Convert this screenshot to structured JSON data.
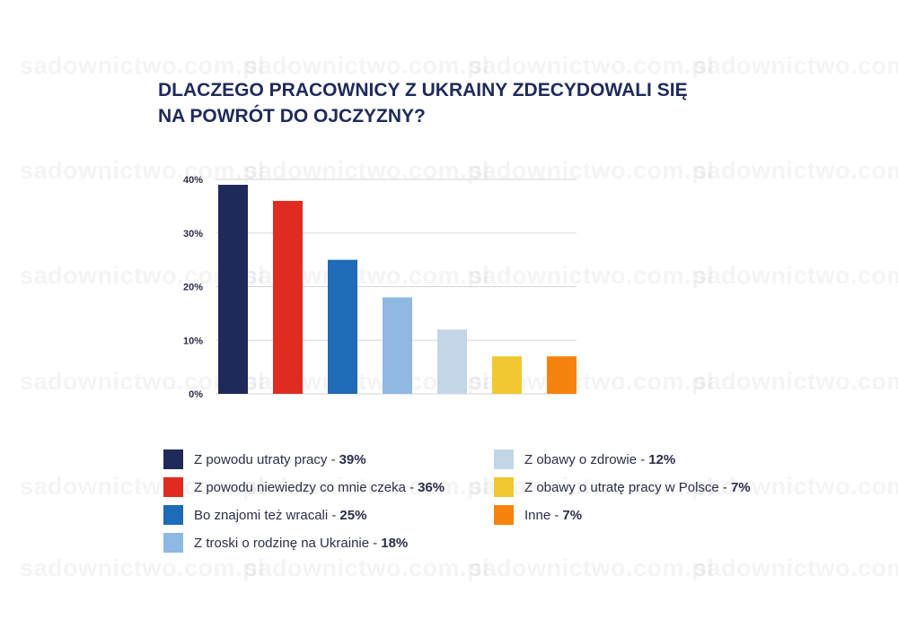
{
  "watermark": "sadownictwo.com.pl",
  "title_lines": [
    "DLACZEGO PRACOWNICY Z UKRAINY ZDECYDOWALI SIĘ",
    "NA POWRÓT DO OJCZYZNY?"
  ],
  "chart_data": {
    "type": "bar",
    "title": "DLACZEGO PRACOWNICY Z UKRAINY ZDECYDOWALI SIĘ NA POWRÓT DO OJCZYZNY?",
    "categories": [
      "Z powodu utraty pracy",
      "Z powodu niewiedzy co mnie czeka",
      "Bo znajomi też wracali",
      "Z troski o rodzinę na Ukrainie",
      "Z obawy o zdrowie",
      "Z obawy o utratę pracy w Polsce",
      "Inne"
    ],
    "values": [
      39,
      36,
      25,
      18,
      12,
      7,
      7
    ],
    "colors": [
      "#1f2a5a",
      "#e02b20",
      "#1e6bb8",
      "#8fb8e3",
      "#c5d5e8",
      "#f2c832",
      "#f7830f"
    ],
    "ylim": [
      0,
      40
    ],
    "yticks": [
      0,
      10,
      20,
      30,
      40
    ],
    "ytick_labels": [
      "0%",
      "10%",
      "20%",
      "30%",
      "40%"
    ],
    "grid": true,
    "legend_placement": "bottom",
    "legend": [
      {
        "label": "Z powodu utraty pracy - ",
        "value": "39%",
        "color": "#1f2a5a"
      },
      {
        "label": "Z powodu niewiedzy co mnie czeka - ",
        "value": "36%",
        "color": "#e02b20"
      },
      {
        "label": "Bo znajomi też wracali - ",
        "value": "25%",
        "color": "#1e6bb8"
      },
      {
        "label": "Z troski o rodzinę na Ukrainie  - ",
        "value": "18%",
        "color": "#8fb8e3"
      },
      {
        "label": "Z obawy o zdrowie - ",
        "value": "12%",
        "color": "#c5d5e8"
      },
      {
        "label": "Z obawy o utratę pracy w Polsce - ",
        "value": "7%",
        "color": "#f2c832"
      },
      {
        "label": "Inne - ",
        "value": "7%",
        "color": "#f7830f"
      }
    ]
  }
}
